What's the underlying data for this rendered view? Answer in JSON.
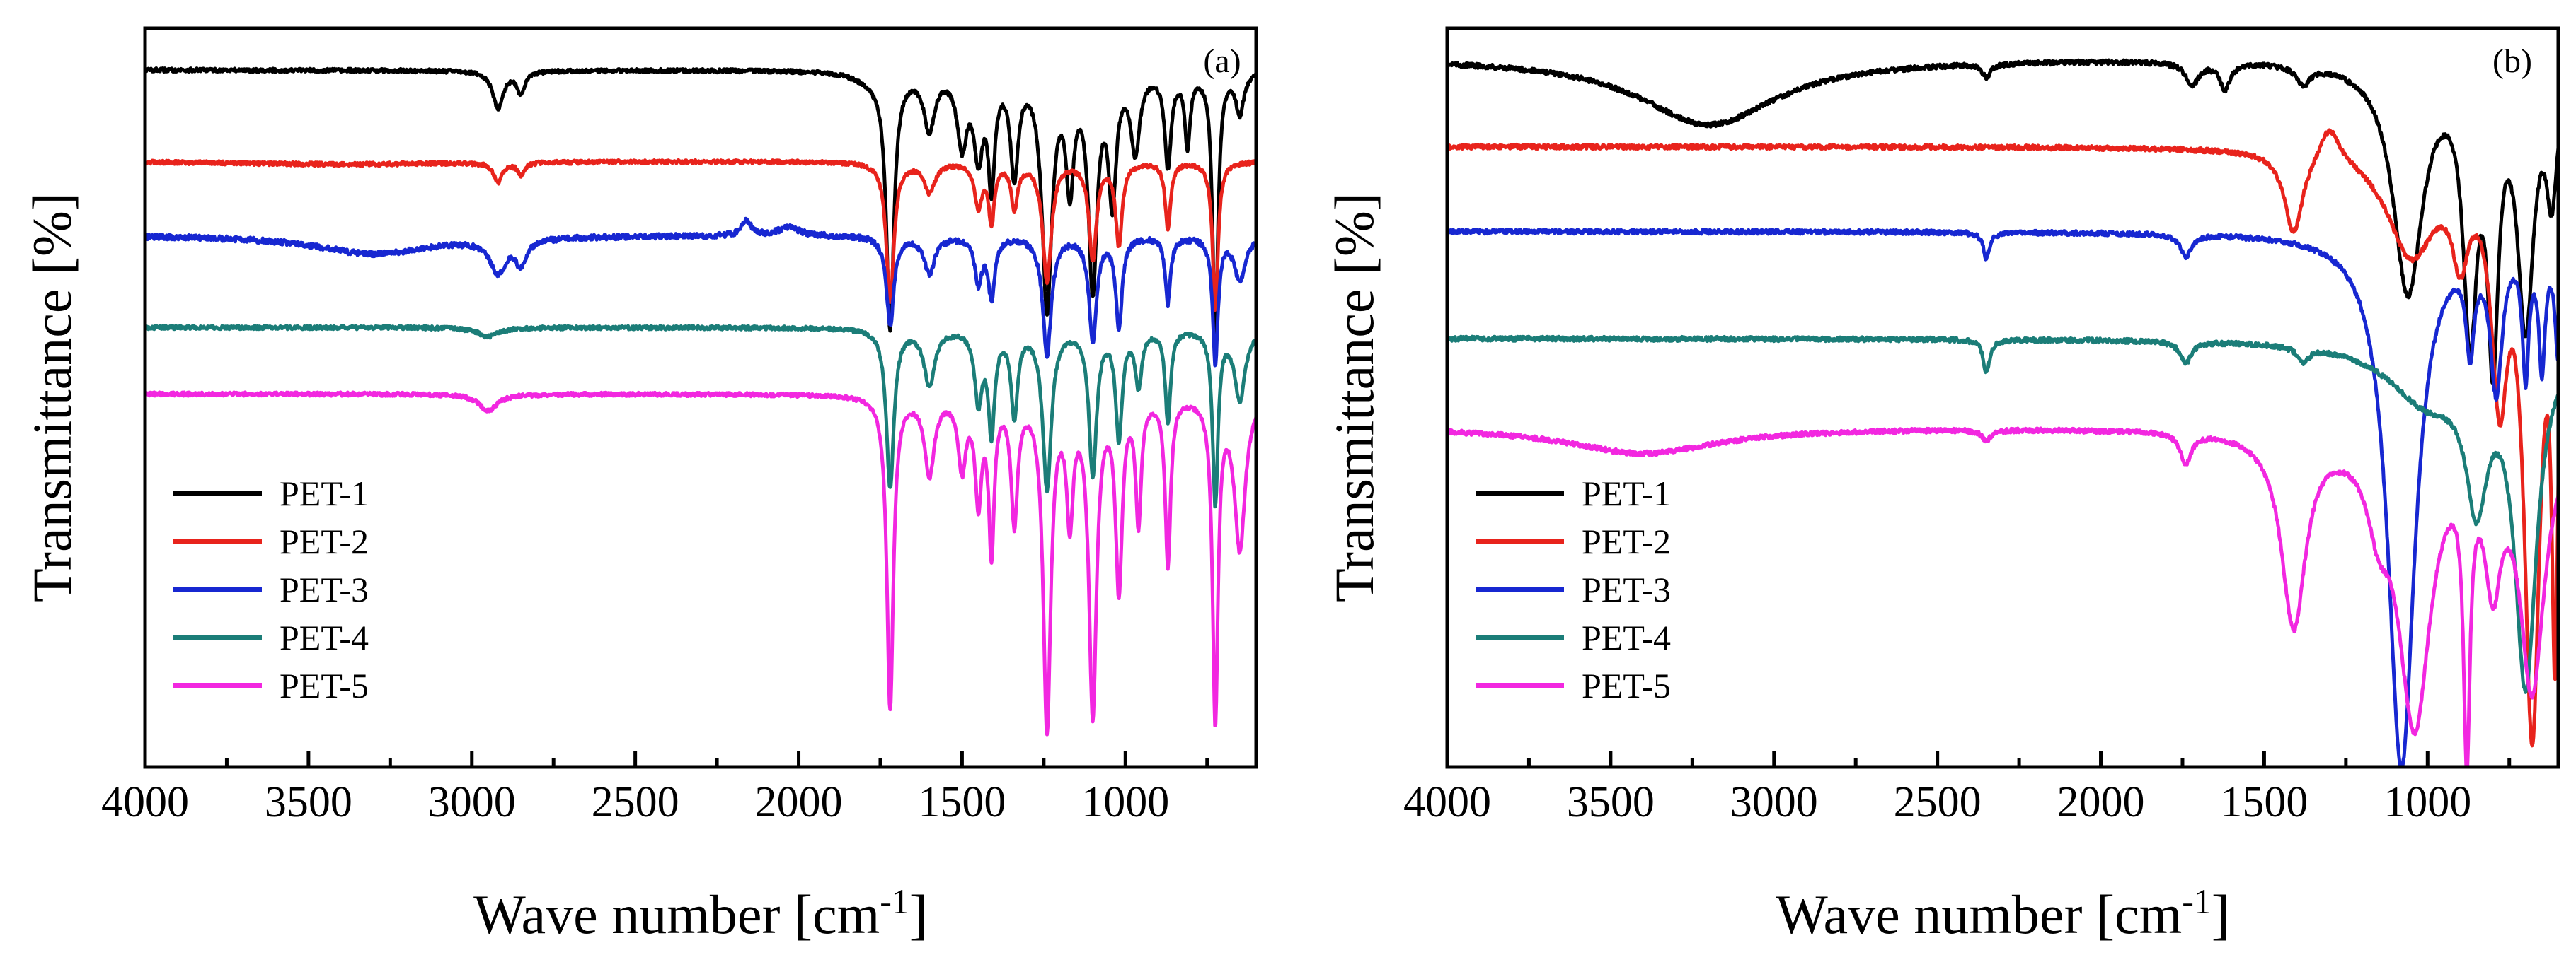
{
  "chart_data": [
    {
      "type": "line",
      "panel_label": "(a)",
      "xlabel": "Wave number [cm",
      "xlabel_sup": "-1",
      "xlabel_end": "]",
      "ylabel": "Transmittance [%]",
      "xlim": [
        4000,
        600
      ],
      "ylim": [
        0,
        100
      ],
      "x_reversed": true,
      "x_ticks": [
        4000,
        3500,
        3000,
        2500,
        2000,
        1500,
        1000
      ],
      "tick_labels": [
        "4000",
        "3500",
        "3000",
        "2500",
        "2000",
        "1500",
        "1000"
      ],
      "legend_position": "bottom-left",
      "series": [
        {
          "name": "PET-1",
          "color": "#000000",
          "baseline": 94.5,
          "noise": 0.25,
          "features": [
            [
              3000,
              94.3,
              1500,
              0
            ],
            [
              2920,
              89.5,
              20,
              0
            ],
            [
              2850,
              91.5,
              14,
              0
            ],
            [
              1780,
              93.5,
              60,
              0
            ],
            [
              1720,
              60,
              14,
              0
            ],
            [
              1600,
              87,
              20,
              0
            ],
            [
              1500,
              85,
              18,
              0
            ],
            [
              1450,
              84,
              16,
              0
            ],
            [
              1410,
              80,
              12,
              0
            ],
            [
              1340,
              81,
              14,
              0
            ],
            [
              1240,
              63,
              18,
              0
            ],
            [
              1170,
              80,
              14,
              0
            ],
            [
              1100,
              66,
              16,
              0
            ],
            [
              1040,
              78,
              14,
              0
            ],
            [
              970,
              84,
              16,
              0
            ],
            [
              870,
              82,
              12,
              0
            ],
            [
              810,
              85,
              10,
              0
            ],
            [
              725,
              59,
              10,
              0
            ],
            [
              650,
              89,
              15,
              0
            ]
          ]
        },
        {
          "name": "PET-2",
          "color": "#e8231c",
          "baseline": 82.0,
          "noise": 0.25,
          "features": [
            [
              3400,
              81.6,
              400,
              0
            ],
            [
              2920,
              79.3,
              16,
              0
            ],
            [
              2850,
              80.3,
              12,
              0
            ],
            [
              1720,
              63,
              14,
              0
            ],
            [
              1600,
              78,
              20,
              0
            ],
            [
              1450,
              76,
              14,
              0
            ],
            [
              1410,
              74,
              10,
              0
            ],
            [
              1340,
              76,
              12,
              0
            ],
            [
              1240,
              66,
              16,
              0
            ],
            [
              1100,
              69,
              14,
              0
            ],
            [
              1020,
              71,
              12,
              0
            ],
            [
              870,
              73,
              10,
              0
            ],
            [
              725,
              62,
              10,
              0
            ]
          ]
        },
        {
          "name": "PET-3",
          "color": "#1727d1",
          "baseline": 72.0,
          "noise": 0.35,
          "features": [
            [
              3300,
              69.5,
              220,
              0
            ],
            [
              2920,
              67.5,
              30,
              0
            ],
            [
              2850,
              68.7,
              20,
              0
            ],
            [
              2160,
              74,
              18,
              0
            ],
            [
              2030,
              73.2,
              40,
              0
            ],
            [
              1720,
              60,
              14,
              0
            ],
            [
              1600,
              67,
              20,
              0
            ],
            [
              1450,
              66,
              14,
              0
            ],
            [
              1410,
              64,
              12,
              0
            ],
            [
              1240,
              56,
              16,
              0
            ],
            [
              1100,
              58,
              14,
              0
            ],
            [
              1020,
              60,
              12,
              0
            ],
            [
              870,
              63,
              10,
              0
            ],
            [
              725,
              55,
              10,
              0
            ],
            [
              650,
              66,
              20,
              0
            ]
          ]
        },
        {
          "name": "PET-4",
          "color": "#1b7d78",
          "baseline": 59.5,
          "noise": 0.25,
          "features": [
            [
              2950,
              58.3,
              40,
              0
            ],
            [
              1720,
              38,
              14,
              0
            ],
            [
              1600,
              52,
              20,
              0
            ],
            [
              1450,
              50,
              14,
              0
            ],
            [
              1410,
              46,
              12,
              0
            ],
            [
              1340,
              48,
              12,
              0
            ],
            [
              1240,
              38,
              16,
              0
            ],
            [
              1100,
              40,
              14,
              0
            ],
            [
              1020,
              45,
              12,
              0
            ],
            [
              960,
              52,
              12,
              0
            ],
            [
              870,
              47,
              10,
              0
            ],
            [
              725,
              36,
              10,
              0
            ],
            [
              650,
              50,
              20,
              0
            ]
          ]
        },
        {
          "name": "PET-5",
          "color": "#f227e0",
          "baseline": 50.5,
          "noise": 0.25,
          "features": [
            [
              2950,
              48.3,
              35,
              0
            ],
            [
              1720,
              8,
              12,
              0
            ],
            [
              1600,
              40,
              18,
              0
            ],
            [
              1500,
              41,
              14,
              0
            ],
            [
              1450,
              37,
              12,
              0
            ],
            [
              1410,
              30,
              10,
              0
            ],
            [
              1340,
              34,
              12,
              0
            ],
            [
              1240,
              6,
              14,
              0
            ],
            [
              1170,
              35,
              12,
              0
            ],
            [
              1100,
              8,
              14,
              0
            ],
            [
              1020,
              25,
              12,
              0
            ],
            [
              960,
              34,
              10,
              0
            ],
            [
              870,
              28,
              10,
              0
            ],
            [
              725,
              7,
              10,
              0
            ],
            [
              650,
              30,
              20,
              0
            ]
          ]
        }
      ]
    },
    {
      "type": "line",
      "panel_label": "(b)",
      "xlabel": "Wave number [cm",
      "xlabel_sup": "-1",
      "xlabel_end": "]",
      "ylabel": "Transmittance [%]",
      "xlim": [
        4000,
        600
      ],
      "ylim": [
        0,
        100
      ],
      "x_reversed": true,
      "x_ticks": [
        4000,
        3500,
        3000,
        2500,
        2000,
        1500,
        1000
      ],
      "tick_labels": [
        "4000",
        "3500",
        "3000",
        "2500",
        "2000",
        "1500",
        "1000"
      ],
      "legend_position": "bottom-left",
      "series": [
        {
          "name": "PET-1",
          "color": "#000000",
          "baseline": 96.0,
          "noise": 0.3,
          "features": [
            [
              3200,
              87,
              260,
              0
            ],
            [
              2350,
              94.2,
              15,
              0
            ],
            [
              1720,
              93,
              25,
              0
            ],
            [
              1620,
              92.5,
              20,
              0
            ],
            [
              1380,
              93.5,
              25,
              0
            ],
            [
              1060,
              65,
              55,
              0
            ],
            [
              870,
              62,
              25,
              0
            ],
            [
              800,
              60,
              20,
              0
            ],
            [
              700,
              62,
              30,
              0
            ],
            [
              620,
              80,
              20,
              1
            ]
          ]
        },
        {
          "name": "PET-2",
          "color": "#e8231c",
          "baseline": 84.0,
          "noise": 0.3,
          "features": [
            [
              1410,
              73,
              35,
              0
            ],
            [
              1300,
              89,
              40,
              1
            ],
            [
              1050,
              70,
              90,
              0
            ],
            [
              900,
              73,
              30,
              0
            ],
            [
              780,
              55,
              30,
              0
            ],
            [
              680,
              8,
              30,
              0
            ],
            [
              610,
              25,
              12,
              0
            ]
          ]
        },
        {
          "name": "PET-3",
          "color": "#1727d1",
          "baseline": 72.5,
          "noise": 0.3,
          "features": [
            [
              3200,
              72.5,
              400,
              0
            ],
            [
              2350,
              69,
              12,
              0
            ],
            [
              1740,
              69.5,
              20,
              0
            ],
            [
              1080,
              0,
              50,
              0
            ],
            [
              870,
              60,
              15,
              1
            ],
            [
              790,
              53,
              22,
              0
            ],
            [
              700,
              55,
              12,
              0
            ],
            [
              650,
              56,
              12,
              0
            ],
            [
              600,
              57,
              12,
              0
            ]
          ]
        },
        {
          "name": "PET-4",
          "color": "#1b7d78",
          "baseline": 58.0,
          "noise": 0.3,
          "features": [
            [
              2350,
              53.5,
              12,
              0
            ],
            [
              1740,
              55,
              20,
              0
            ],
            [
              1380,
              56,
              20,
              0
            ],
            [
              1000,
              50,
              150,
              0
            ],
            [
              850,
              40,
              40,
              0
            ],
            [
              700,
              13,
              40,
              0
            ]
          ]
        },
        {
          "name": "PET-5",
          "color": "#f227e0",
          "baseline": 46.0,
          "noise": 0.3,
          "features": [
            [
              3400,
              42.5,
              280,
              0
            ],
            [
              2350,
              44.5,
              15,
              0
            ],
            [
              1740,
              42,
              20,
              0
            ],
            [
              1410,
              20,
              45,
              0
            ],
            [
              1150,
              38,
              40,
              0
            ],
            [
              1040,
              7,
              60,
              0
            ],
            [
              880,
              8,
              12,
              0
            ],
            [
              800,
              29,
              30,
              1
            ],
            [
              680,
              12,
              45,
              0
            ]
          ]
        }
      ]
    }
  ]
}
